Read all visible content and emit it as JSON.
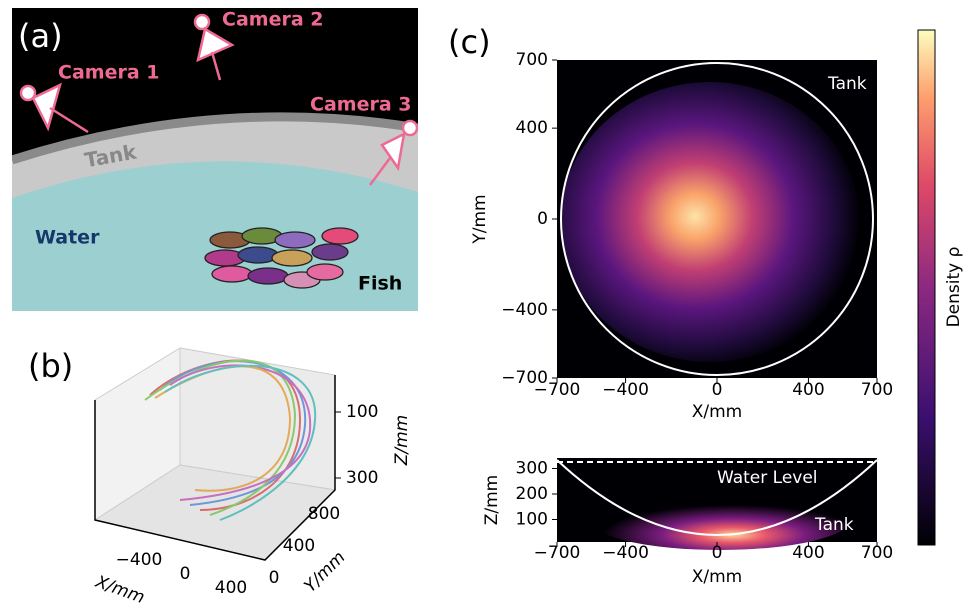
{
  "panel_a": {
    "label": "(a)",
    "camera1": "Camera 1",
    "camera2": "Camera 2",
    "camera3": "Camera 3",
    "tank": "Tank",
    "water": "Water",
    "fish": "Fish"
  },
  "panel_b": {
    "label": "(b)",
    "x_label": "X/mm",
    "y_label": "Y/mm",
    "z_label": "Z/mm",
    "xticks": [
      {
        "value": -400,
        "label": "−400"
      },
      0,
      400
    ],
    "yticks": [
      0,
      400,
      800
    ],
    "zticks": [
      100,
      300
    ]
  },
  "panel_c": {
    "label": "(c)",
    "top": {
      "x_label": "X/mm",
      "y_label": "Y/mm",
      "annotation": "Tank",
      "xticks": [
        {
          "value": -700,
          "label": "−700"
        },
        {
          "value": -400,
          "label": "−400"
        },
        0,
        400,
        700
      ],
      "yticks": [
        700,
        400,
        0,
        {
          "value": -400,
          "label": "−400"
        },
        {
          "value": -700,
          "label": "−700"
        }
      ]
    },
    "bottom": {
      "x_label": "X/mm",
      "y_label": "Z/mm",
      "annotation_water": "Water Level",
      "annotation_tank": "Tank",
      "xticks": [
        {
          "value": -700,
          "label": "−700"
        },
        {
          "value": -400,
          "label": "−400"
        },
        0,
        400,
        700
      ],
      "yticks": [
        300,
        200,
        100
      ]
    },
    "colorbar_label": "Density ρ"
  }
}
